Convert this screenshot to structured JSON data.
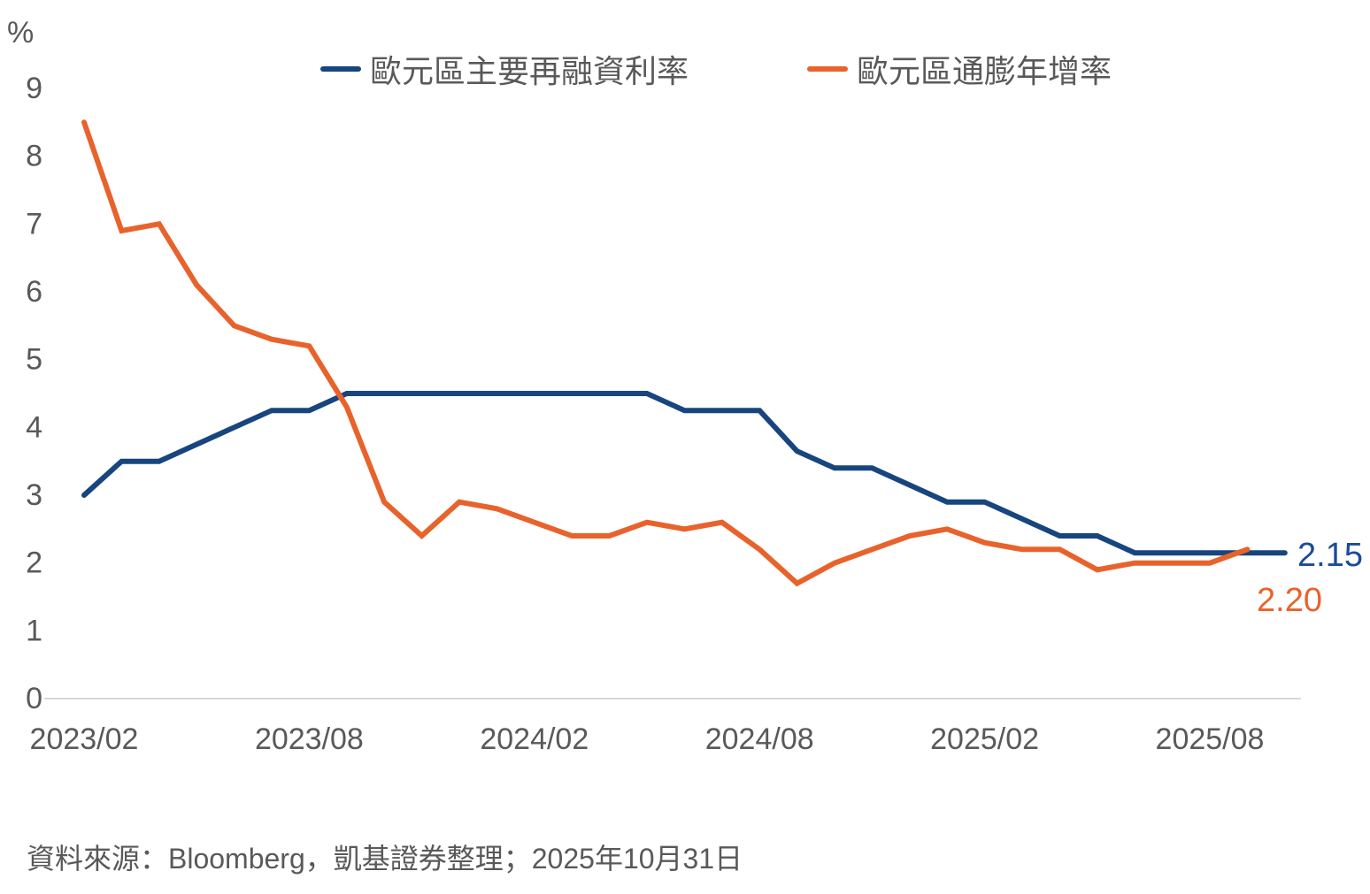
{
  "unit_label": "%",
  "colors": {
    "refi_line": "#17457E",
    "inflation_line": "#E8632B",
    "refi_value_label": "#1B4B9B",
    "inflation_value_label": "#E8632B",
    "axis_text": "#595959",
    "axis_line": "#D9D9D9"
  },
  "legend": {
    "refi_label": "歐元區主要再融資利率",
    "inflation_label": "歐元區通膨年增率"
  },
  "end_labels": {
    "refi": "2.15",
    "inflation": "2.20"
  },
  "source_note": "資料來源：Bloomberg，凱基證券整理；2025年10月31日",
  "chart_data": {
    "type": "line",
    "title": "",
    "xlabel": "",
    "ylabel": "%",
    "ylim": [
      0,
      9
    ],
    "grid": false,
    "legend_position": "top",
    "x": [
      "2023/02",
      "2023/03",
      "2023/04",
      "2023/05",
      "2023/06",
      "2023/07",
      "2023/08",
      "2023/09",
      "2023/10",
      "2023/11",
      "2023/12",
      "2024/01",
      "2024/02",
      "2024/03",
      "2024/04",
      "2024/05",
      "2024/06",
      "2024/07",
      "2024/08",
      "2024/09",
      "2024/10",
      "2024/11",
      "2024/12",
      "2025/01",
      "2025/02",
      "2025/03",
      "2025/04",
      "2025/05",
      "2025/06",
      "2025/07",
      "2025/08",
      "2025/09",
      "2025/10"
    ],
    "x_tick_labels": [
      "2023/02",
      "2023/08",
      "2024/02",
      "2024/08",
      "2025/02",
      "2025/08"
    ],
    "x_tick_indices": [
      0,
      6,
      12,
      18,
      24,
      30
    ],
    "y_ticks": [
      0,
      1,
      2,
      3,
      4,
      5,
      6,
      7,
      8,
      9
    ],
    "series": [
      {
        "name": "歐元區主要再融資利率",
        "color": "#17457E",
        "last_value": 2.15,
        "values": [
          3.0,
          3.5,
          3.5,
          3.75,
          4.0,
          4.25,
          4.25,
          4.5,
          4.5,
          4.5,
          4.5,
          4.5,
          4.5,
          4.5,
          4.5,
          4.5,
          4.25,
          4.25,
          4.25,
          3.65,
          3.4,
          3.4,
          3.15,
          2.9,
          2.9,
          2.65,
          2.4,
          2.4,
          2.15,
          2.15,
          2.15,
          2.15,
          2.15
        ]
      },
      {
        "name": "歐元區通膨年增率",
        "color": "#E8632B",
        "last_value": 2.2,
        "values": [
          8.5,
          6.9,
          7.0,
          6.1,
          5.5,
          5.3,
          5.2,
          4.3,
          2.9,
          2.4,
          2.9,
          2.8,
          2.6,
          2.4,
          2.4,
          2.6,
          2.5,
          2.6,
          2.2,
          1.7,
          2.0,
          2.2,
          2.4,
          2.5,
          2.3,
          2.2,
          2.2,
          1.9,
          2.0,
          2.0,
          2.0,
          2.2,
          null
        ]
      }
    ]
  }
}
